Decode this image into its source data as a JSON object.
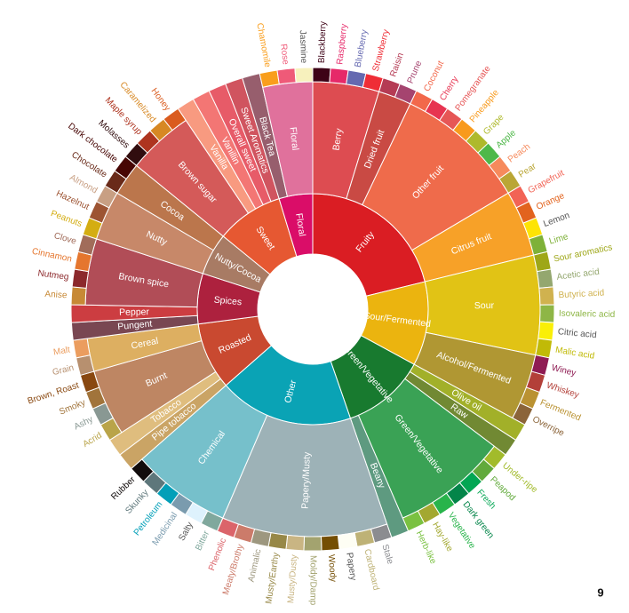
{
  "wheel": [
    {
      "label": "Fruity",
      "color": "#da1d23",
      "children": [
        {
          "label": "Berry",
          "color": "#dd4c51",
          "children": [
            {
              "label": "Blackberry",
              "color": "#3e0317"
            },
            {
              "label": "Raspberry",
              "color": "#e62969"
            },
            {
              "label": "Blueberry",
              "color": "#6569b0"
            },
            {
              "label": "Strawberry",
              "color": "#ef2d36"
            }
          ]
        },
        {
          "label": "Dried fruit",
          "color": "#c94a44",
          "children": [
            {
              "label": "Raisin",
              "color": "#b53b54"
            },
            {
              "label": "Prune",
              "color": "#a5446f"
            }
          ]
        },
        {
          "label": "Other fruit",
          "color": "#ef6b4b",
          "children": [
            {
              "label": "Coconut",
              "color": "#f2684b"
            },
            {
              "label": "Cherry",
              "color": "#e73451"
            },
            {
              "label": "Pomegranate",
              "color": "#e65656"
            },
            {
              "label": "Pineapple",
              "color": "#f89a1c"
            },
            {
              "label": "Grape",
              "color": "#aeb92c"
            },
            {
              "label": "Apple",
              "color": "#4eb849"
            },
            {
              "label": "Peach",
              "color": "#f68a5c"
            },
            {
              "label": "Pear",
              "color": "#baa635"
            }
          ]
        },
        {
          "label": "Citrus fruit",
          "color": "#f7a128",
          "children": [
            {
              "label": "Grapefruit",
              "color": "#f26355"
            },
            {
              "label": "Orange",
              "color": "#e2631e"
            },
            {
              "label": "Lemon",
              "color": "#fde404"
            },
            {
              "label": "Lime",
              "color": "#7eb138"
            }
          ]
        }
      ]
    },
    {
      "label": "Sour/Fermented",
      "color": "#ebb40f",
      "children": [
        {
          "label": "Sour",
          "color": "#e1c315",
          "children": [
            {
              "label": "Sour aromatics",
              "color": "#9ea718"
            },
            {
              "label": "Acetic acid",
              "color": "#94a76f"
            },
            {
              "label": "Butyric acid",
              "color": "#d0b24f"
            },
            {
              "label": "Isovaleric acid",
              "color": "#8eb646"
            },
            {
              "label": "Citric acid",
              "color": "#faef07"
            },
            {
              "label": "Malic acid",
              "color": "#c1ba07"
            }
          ]
        },
        {
          "label": "Alcohol/Fermented",
          "color": "#b09733",
          "children": [
            {
              "label": "Winey",
              "color": "#8f1c53"
            },
            {
              "label": "Whiskey",
              "color": "#b34039"
            },
            {
              "label": "Fermented",
              "color": "#ba9232"
            },
            {
              "label": "Overripe",
              "color": "#8b6439"
            }
          ]
        }
      ]
    },
    {
      "label": "Green/Vegetative",
      "color": "#187a2f",
      "children": [
        {
          "label": "Olive oil",
          "color": "#a2b029"
        },
        {
          "label": "Raw",
          "color": "#718933"
        },
        {
          "label": "Green/Vegetative",
          "color": "#3aa255",
          "children": [
            {
              "label": "Under-ripe",
              "color": "#a2bb2b"
            },
            {
              "label": "Peapod",
              "color": "#62aa3c"
            },
            {
              "label": "Fresh",
              "color": "#03a653"
            },
            {
              "label": "Dark green",
              "color": "#038549"
            },
            {
              "label": "Vegetative",
              "color": "#28b44b"
            },
            {
              "label": "Hay-like",
              "color": "#a3a830"
            },
            {
              "label": "Herb-like",
              "color": "#7ac141"
            }
          ]
        },
        {
          "label": "Beany",
          "color": "#5e9a80"
        }
      ]
    },
    {
      "label": "Other",
      "color": "#0aa3b5",
      "children": [
        {
          "label": "Papery/Musty",
          "color": "#9db2b7",
          "children": [
            {
              "label": "Stale",
              "color": "#8b8c90"
            },
            {
              "label": "Cardboard",
              "color": "#beb276"
            },
            {
              "label": "Papery",
              "color": "#fefef4"
            },
            {
              "label": "Woody",
              "color": "#744e03"
            },
            {
              "label": "Moldy/Damp",
              "color": "#a3a36f"
            },
            {
              "label": "Musty/Dusty",
              "color": "#c9b583"
            },
            {
              "label": "Musty/Earthy",
              "color": "#978847"
            },
            {
              "label": "Animalic",
              "color": "#9d977f"
            },
            {
              "label": "Meaty/Brothy",
              "color": "#cc7b6a"
            },
            {
              "label": "Phenolic",
              "color": "#db646a"
            }
          ]
        },
        {
          "label": "Chemical",
          "color": "#76c0cb",
          "children": [
            {
              "label": "Bitter",
              "color": "#80a89d"
            },
            {
              "label": "Salty",
              "color": "#def2fd"
            },
            {
              "label": "Medicinal",
              "color": "#7a9bae"
            },
            {
              "label": "Petroleum",
              "color": "#039fb8"
            },
            {
              "label": "Skunky",
              "color": "#5e777b"
            },
            {
              "label": "Rubber",
              "color": "#120c0c"
            }
          ]
        }
      ]
    },
    {
      "label": "Roasted",
      "color": "#c94930",
      "children": [
        {
          "label": "Pipe tobacco",
          "color": "#caa465"
        },
        {
          "label": "Tobacco",
          "color": "#dfbd7e"
        },
        {
          "label": "Burnt",
          "color": "#be8663",
          "children": [
            {
              "label": "Acrid",
              "color": "#b9a449"
            },
            {
              "label": "Ashy",
              "color": "#899893"
            },
            {
              "label": "Smoky",
              "color": "#a1743b"
            },
            {
              "label": "Brown, Roast",
              "color": "#894810"
            }
          ]
        },
        {
          "label": "Cereal",
          "color": "#ddaf61",
          "children": [
            {
              "label": "Grain",
              "color": "#b7906f"
            },
            {
              "label": "Malt",
              "color": "#eb9d5f"
            }
          ]
        }
      ]
    },
    {
      "label": "Spices",
      "color": "#ad213e",
      "children": [
        {
          "label": "Pungent",
          "color": "#794752"
        },
        {
          "label": "Pepper",
          "color": "#cc3d41"
        },
        {
          "label": "Brown spice",
          "color": "#b14d57",
          "children": [
            {
              "label": "Anise",
              "color": "#c78936"
            },
            {
              "label": "Nutmeg",
              "color": "#8c292c"
            },
            {
              "label": "Cinnamon",
              "color": "#e5762e"
            },
            {
              "label": "Clove",
              "color": "#a16c5a"
            }
          ]
        }
      ]
    },
    {
      "label": "Nutty/Cocoa",
      "color": "#a87b64",
      "children": [
        {
          "label": "Nutty",
          "color": "#c78869",
          "children": [
            {
              "label": "Peanuts",
              "color": "#d4ad12"
            },
            {
              "label": "Hazelnut",
              "color": "#9d5433"
            },
            {
              "label": "Almond",
              "color": "#c89f83"
            }
          ]
        },
        {
          "label": "Cocoa",
          "color": "#bb764c",
          "children": [
            {
              "label": "Chocolate",
              "color": "#692a19"
            },
            {
              "label": "Dark chocolate",
              "color": "#470604"
            }
          ]
        }
      ]
    },
    {
      "label": "Sweet",
      "color": "#e65832",
      "children": [
        {
          "label": "Brown sugar",
          "color": "#d45a59",
          "children": [
            {
              "label": "Molasses",
              "color": "#310d0f"
            },
            {
              "label": "Maple syrup",
              "color": "#ae341f"
            },
            {
              "label": "Caramelized",
              "color": "#d78823"
            },
            {
              "label": "Honey",
              "color": "#da5c1f"
            }
          ]
        },
        {
          "label": "Vanilla",
          "color": "#f89a80"
        },
        {
          "label": "Vanillin",
          "color": "#f37674"
        },
        {
          "label": "Overall sweet",
          "color": "#e75b68"
        },
        {
          "label": "Sweet Aromatics",
          "color": "#d0545f"
        }
      ]
    },
    {
      "label": "Floral",
      "color": "#da0d68",
      "children": [
        {
          "label": "Black Tea",
          "color": "#975e6d"
        },
        {
          "label": "Floral",
          "color": "#e0719c",
          "children": [
            {
              "label": "Chamomile",
              "color": "#f99e1c"
            },
            {
              "label": "Rose",
              "color": "#ef5a78"
            },
            {
              "label": "Jasmine",
              "color": "#f7f1bd"
            }
          ]
        }
      ]
    }
  ],
  "page_number": "9"
}
